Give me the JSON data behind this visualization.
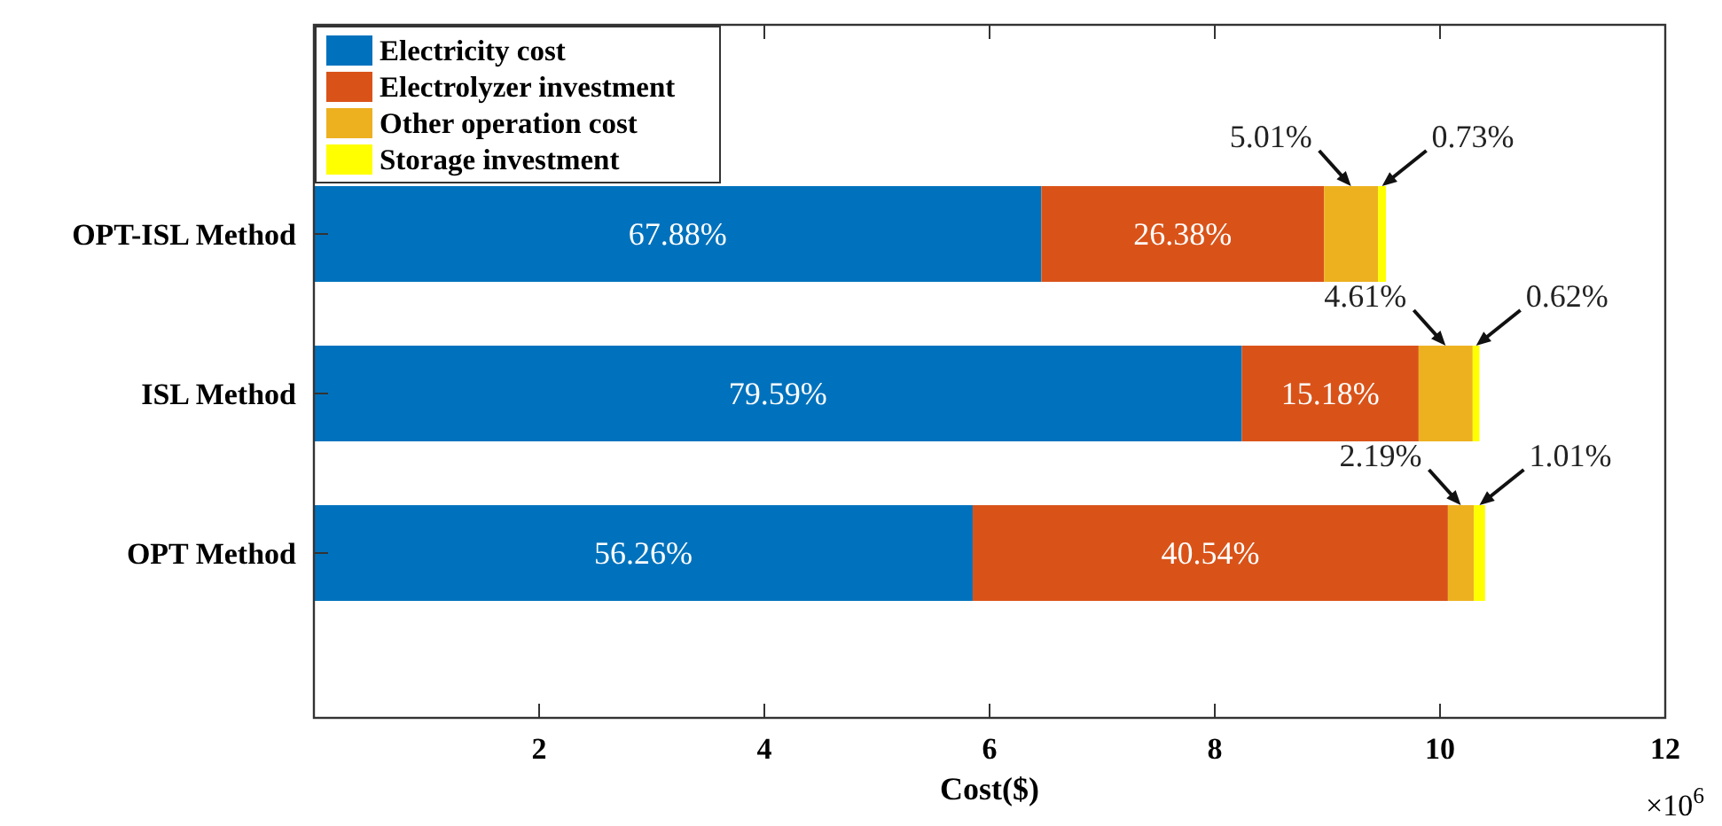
{
  "chart_data": {
    "type": "bar",
    "orientation": "horizontal",
    "stacked": true,
    "xlabel": "Cost($)",
    "categories": [
      "OPT-ISL Method",
      "ISL Method",
      "OPT Method"
    ],
    "xlim": [
      0,
      12
    ],
    "xticks": [
      2,
      4,
      6,
      8,
      10,
      12
    ],
    "legend": "top left",
    "grid": false,
    "annotations": [
      "×10$^{6}$",
      "67.88%",
      "26.38%",
      "5.01%",
      "0.73%",
      "79.59%",
      "15.18%",
      "4.61%",
      "0.62%",
      "56.26%",
      "40.54%",
      "2.19%",
      "1.01%"
    ],
    "series": [
      {
        "name": "Electricity cost",
        "color": "#0072bd",
        "values": [
          6.46,
          8.24,
          5.85
        ]
      },
      {
        "name": "Electrolyzer investment",
        "color": "#d95319",
        "values": [
          2.51,
          1.57,
          4.22
        ]
      },
      {
        "name": "Other operation cost",
        "color": "#edb120",
        "values": [
          0.48,
          0.48,
          0.23
        ]
      },
      {
        "name": "Storage investment",
        "color": "#ffff00",
        "values": [
          0.07,
          0.06,
          0.1
        ]
      }
    ]
  }
}
